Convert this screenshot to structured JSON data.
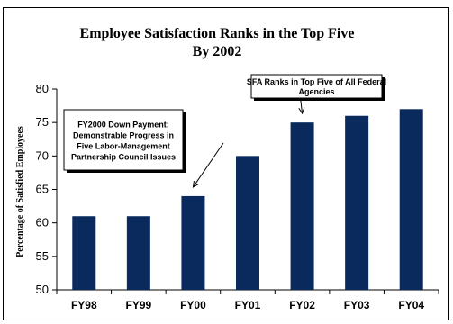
{
  "chart_data": {
    "type": "bar",
    "title": "Employee Satisfaction Ranks in the Top Five",
    "subtitle": "By 2002",
    "xlabel": "",
    "ylabel": "Percentage of Satisfied Employees",
    "categories": [
      "FY98",
      "FY99",
      "FY00",
      "FY01",
      "FY02",
      "FY03",
      "FY04"
    ],
    "values": [
      61,
      61,
      64,
      70,
      75,
      76,
      77
    ],
    "ylim": [
      50,
      80
    ],
    "yticks": [
      "50",
      "55",
      "60",
      "65",
      "70",
      "75",
      "80"
    ],
    "bar_color": "#0a2a5e",
    "grid": false,
    "legend": "none",
    "annotations": [
      {
        "lines": [
          "FY2000 Down Payment:",
          "Demonstrable Progress in",
          "Five Labor-Management",
          "Partnership Council Issues"
        ],
        "points_to": "FY00"
      },
      {
        "lines": [
          "SFA Ranks in Top Five of All Federal",
          "Agencies"
        ],
        "points_to": "FY02"
      }
    ]
  }
}
